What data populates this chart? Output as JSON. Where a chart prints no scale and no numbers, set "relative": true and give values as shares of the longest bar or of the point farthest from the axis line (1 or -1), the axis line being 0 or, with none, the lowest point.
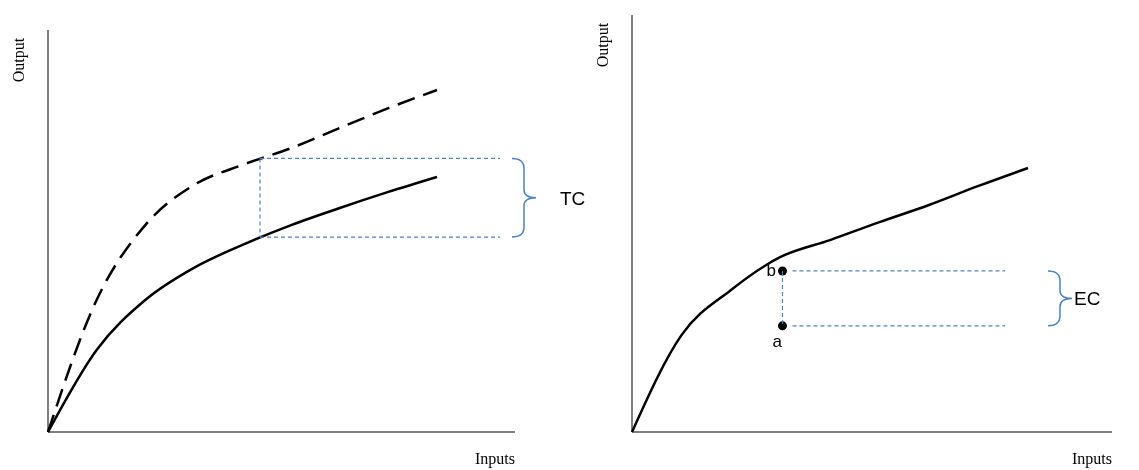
{
  "chart_data": [
    {
      "type": "line",
      "relative": true,
      "xlabel": "Inputs",
      "ylabel": "Output",
      "categories": [
        null,
        null,
        null,
        null,
        null,
        null,
        null,
        null,
        null
      ],
      "series": [
        {
          "color": "#000000",
          "line_style": "dashed",
          "values": [
            0,
            0.386,
            0.605,
            0.722,
            0.781,
            0.83,
            0.889,
            0.947,
            1
          ]
        },
        {
          "color": "#000000",
          "line_style": "solid",
          "values": [
            0,
            0.24,
            0.386,
            0.48,
            0.547,
            0.605,
            0.655,
            0.702,
            0.746
          ]
        }
      ],
      "ref_lines": [
        {
          "axis": "y",
          "value": 0.8,
          "color": "#4f81bd",
          "line_style": "dashed"
        },
        {
          "axis": "y",
          "value": 0.57,
          "color": "#4f81bd",
          "line_style": "dashed"
        }
      ],
      "annotations": [
        "TC"
      ]
    },
    {
      "type": "line",
      "relative": true,
      "xlabel": "Inputs",
      "ylabel": "Output",
      "categories": [
        null,
        null,
        null,
        null,
        null,
        null,
        null,
        null,
        null
      ],
      "series": [
        {
          "color": "#000000",
          "line_style": "solid",
          "values": [
            0,
            0.367,
            0.538,
            0.663,
            0.727,
            0.795,
            0.86,
            0.932,
            1
          ]
        }
      ],
      "ref_lines": [
        {
          "axis": "y",
          "value": 0.61,
          "color": "#4f81bd",
          "line_style": "dashed"
        },
        {
          "axis": "y",
          "value": 0.402,
          "color": "#4f81bd",
          "line_style": "dashed"
        }
      ],
      "annotations": [
        "EC",
        "b",
        "a"
      ]
    }
  ]
}
